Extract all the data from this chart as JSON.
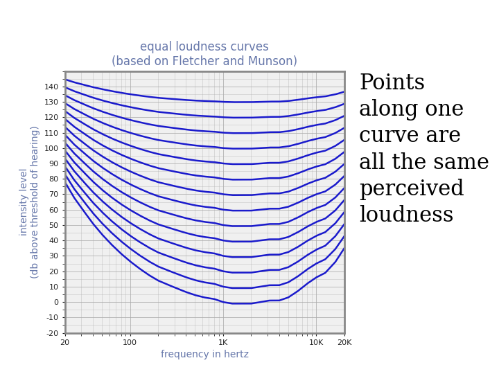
{
  "title_line1": "equal loudness curves",
  "title_line2": "(based on Fletcher and Munson)",
  "xlabel": "frequency in hertz",
  "ylabel_line1": "intensity level",
  "ylabel_line2": "(db above threshold of hearing)",
  "title_color": "#6677aa",
  "axis_label_color": "#6677aa",
  "curve_color": "#1a1acc",
  "tick_label_color": "#222222",
  "bg_color": "#ffffff",
  "plot_bg_color": "#f0f0f0",
  "grid_color": "#aaaaaa",
  "spine_color": "#888888",
  "annotation_text": "Points\nalong one\ncurve are\nall the same\nperceived\nloudness",
  "annotation_fontsize": 22,
  "ymin": -20,
  "ymax": 150,
  "ytick_step": 10,
  "xtick_vals": [
    20,
    100,
    1000,
    10000,
    20000
  ],
  "xtick_labels": [
    "20",
    "100",
    "1K",
    "10K",
    "20K"
  ],
  "phon_levels": [
    0,
    10,
    20,
    30,
    40,
    50,
    60,
    70,
    80,
    90,
    100,
    110,
    120,
    130
  ],
  "ref_freqs": [
    20,
    25,
    31.5,
    40,
    50,
    63,
    80,
    100,
    125,
    160,
    200,
    250,
    315,
    400,
    500,
    630,
    800,
    1000,
    1250,
    1600,
    2000,
    2500,
    3150,
    4000,
    5000,
    6300,
    8000,
    10000,
    12500,
    16000,
    20000
  ],
  "threshold_0phon": [
    78,
    68,
    59.5,
    51,
    44,
    37.5,
    31.5,
    26.5,
    22,
    17.5,
    14,
    11.5,
    9,
    6.5,
    4.5,
    3,
    2,
    0,
    -1,
    -1,
    -1,
    0,
    1,
    1,
    3,
    7,
    12,
    16,
    19,
    26,
    35
  ],
  "curve_linewidth": 1.8,
  "title_fontsize": 12,
  "axis_label_fontsize": 10,
  "tick_fontsize": 8
}
